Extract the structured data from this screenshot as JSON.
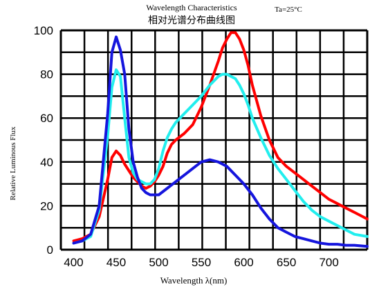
{
  "chart_data": {
    "type": "line",
    "title": "Wavelength Characteristics",
    "subtitle": "相对光谱分布曲线图",
    "condition": "Ta=25°C",
    "xlabel": "Wavelength λ(nm)",
    "ylabel": "Relative Luminous Flux",
    "xlim": [
      385,
      745
    ],
    "ylim": [
      0,
      100
    ],
    "x_ticks": [
      "400",
      "450",
      "500",
      "550",
      "600",
      "650",
      "700"
    ],
    "y_ticks": [
      "0",
      "20",
      "40",
      "60",
      "80",
      "100"
    ],
    "grid": true,
    "colors": {
      "grid": "#000000",
      "red": "#ff0000",
      "cyan": "#22eeee",
      "blue": "#1515dd"
    },
    "series": [
      {
        "color": "#ff0000",
        "x": [
          400,
          410,
          420,
          430,
          440,
          445,
          450,
          455,
          460,
          465,
          470,
          475,
          480,
          485,
          490,
          495,
          500,
          505,
          510,
          515,
          520,
          530,
          540,
          550,
          560,
          570,
          575,
          580,
          585,
          590,
          595,
          600,
          605,
          610,
          620,
          630,
          640,
          650,
          660,
          670,
          680,
          690,
          700,
          710,
          720,
          730,
          745
        ],
        "y": [
          4,
          5,
          7,
          15,
          32,
          42,
          45,
          43,
          39,
          36,
          33,
          31,
          29,
          28,
          29,
          31,
          34,
          38,
          44,
          48,
          50,
          53,
          57,
          65,
          75,
          86,
          92,
          96,
          99,
          99,
          96,
          91,
          84,
          75,
          61,
          50,
          42,
          38,
          35,
          32,
          29,
          26,
          23,
          21,
          19,
          17,
          14
        ]
      },
      {
        "color": "#22eeee",
        "x": [
          400,
          410,
          420,
          430,
          440,
          445,
          450,
          455,
          460,
          465,
          470,
          475,
          480,
          485,
          490,
          495,
          500,
          505,
          510,
          515,
          520,
          530,
          540,
          550,
          560,
          570,
          575,
          580,
          585,
          590,
          595,
          600,
          605,
          610,
          620,
          630,
          640,
          650,
          660,
          670,
          680,
          690,
          700,
          710,
          720,
          730,
          745
        ],
        "y": [
          3,
          4,
          6,
          18,
          52,
          74,
          82,
          79,
          60,
          42,
          35,
          32,
          31,
          30,
          30,
          32,
          37,
          45,
          51,
          55,
          58,
          62,
          66,
          70,
          75,
          79,
          80,
          80,
          79,
          78,
          75,
          71,
          66,
          60,
          51,
          43,
          37,
          32,
          27,
          22,
          18,
          15,
          13,
          11,
          9,
          7,
          6
        ]
      },
      {
        "color": "#1515dd",
        "x": [
          400,
          410,
          420,
          430,
          440,
          445,
          450,
          455,
          460,
          465,
          470,
          475,
          480,
          485,
          490,
          495,
          500,
          510,
          520,
          530,
          540,
          550,
          560,
          570,
          580,
          590,
          600,
          610,
          620,
          630,
          640,
          650,
          660,
          670,
          680,
          690,
          700,
          710,
          720,
          730,
          745
        ],
        "y": [
          3,
          4,
          7,
          20,
          62,
          90,
          97,
          91,
          80,
          55,
          40,
          33,
          28,
          26,
          25,
          25,
          25,
          28,
          31,
          34,
          37,
          40,
          41,
          40,
          38,
          34,
          30,
          25,
          19,
          14,
          10,
          8,
          6,
          5,
          4,
          3,
          2.5,
          2.5,
          2,
          2,
          1.5
        ]
      }
    ]
  }
}
